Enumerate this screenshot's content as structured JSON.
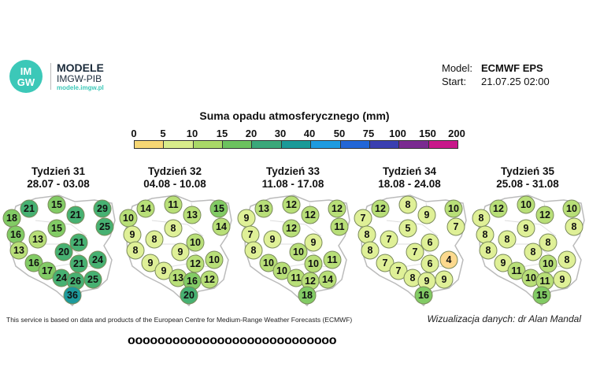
{
  "logo": {
    "badge_line1": "IM",
    "badge_line2": "GW",
    "title": "MODELE",
    "subtitle": "IMGW-PIB",
    "url": "modele.imgw.pl"
  },
  "header": {
    "model_label": "Model:",
    "model_value": "ECMWF EPS",
    "start_label": "Start:",
    "start_value": "21.07.25 02:00"
  },
  "legend": {
    "title": "Suma opadu atmosferycznego (mm)",
    "ticks": [
      "0",
      "5",
      "10",
      "15",
      "20",
      "30",
      "40",
      "50",
      "75",
      "100",
      "150",
      "200"
    ],
    "colors": [
      "#f7d774",
      "#d8ec8a",
      "#a9d867",
      "#6cc25e",
      "#3aa87a",
      "#1a9a98",
      "#1e9be0",
      "#2266d6",
      "#3a3fb0",
      "#7a2a90",
      "#c8188a"
    ]
  },
  "weeks": [
    {
      "title": "Tydzień 31",
      "dates": "28.07 - 03.08",
      "values": [
        21,
        15,
        18,
        21,
        29,
        16,
        15,
        25,
        13,
        21,
        13,
        20,
        16,
        21,
        24,
        17,
        24,
        26,
        25,
        36
      ]
    },
    {
      "title": "Tydzień 32",
      "dates": "04.08 - 10.08",
      "values": [
        14,
        11,
        10,
        13,
        15,
        9,
        8,
        14,
        8,
        10,
        8,
        9,
        9,
        12,
        10,
        9,
        13,
        16,
        12,
        20
      ]
    },
    {
      "title": "Tydzień 33",
      "dates": "11.08 - 17.08",
      "values": [
        13,
        12,
        9,
        12,
        12,
        7,
        12,
        11,
        9,
        9,
        8,
        10,
        10,
        10,
        11,
        10,
        11,
        12,
        14,
        18
      ]
    },
    {
      "title": "Tydzień 34",
      "dates": "18.08 - 24.08",
      "values": [
        12,
        8,
        7,
        9,
        10,
        8,
        5,
        7,
        7,
        6,
        8,
        7,
        7,
        6,
        4,
        7,
        8,
        9,
        9,
        16
      ]
    },
    {
      "title": "Tydzień 35",
      "dates": "25.08 - 31.08",
      "values": [
        12,
        10,
        8,
        12,
        10,
        8,
        9,
        8,
        8,
        8,
        8,
        8,
        9,
        10,
        8,
        11,
        10,
        11,
        9,
        15
      ]
    }
  ],
  "overlay_text": "oooooooooooooooooooooooooooo",
  "footer": {
    "source": "This service is based on data and products of the European Centre for Medium-Range Weather Forecasts (ECMWF)",
    "credit": "Wizualizacja danych: dr Alan Mandal"
  }
}
